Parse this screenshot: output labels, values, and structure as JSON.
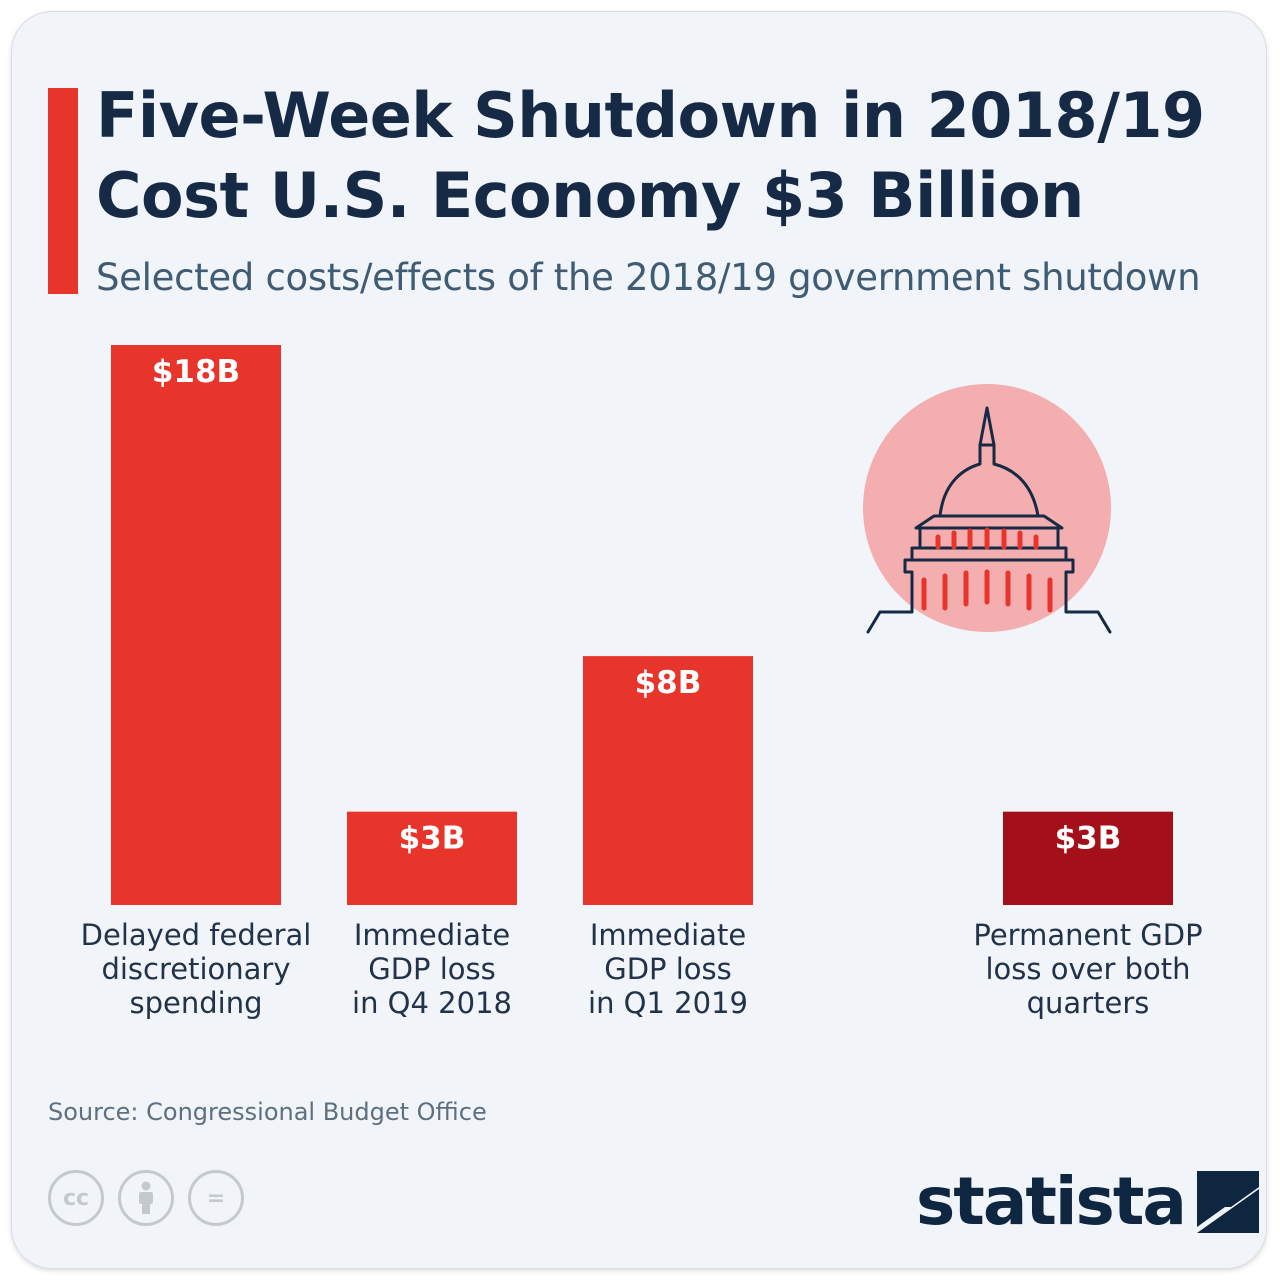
{
  "header": {
    "title_line1": "Five-Week Shutdown in 2018/19",
    "title_line2": "Cost U.S. Economy $3 Billion",
    "subtitle": "Selected costs/effects of the 2018/19 government shutdown"
  },
  "chart_data": {
    "type": "bar",
    "categories": [
      [
        "Delayed federal",
        "discretionary",
        "spending"
      ],
      [
        "Immediate",
        "GDP loss",
        "in Q4 2018"
      ],
      [
        "Immediate",
        "GDP loss",
        "in Q1 2019"
      ],
      [
        "Permanent GDP",
        "loss over both",
        "quarters"
      ]
    ],
    "values": [
      18,
      3,
      8,
      3
    ],
    "value_labels": [
      "$18B",
      "$3B",
      "$8B",
      "$3B"
    ],
    "bar_colors": [
      "#e8352b",
      "#e8352b",
      "#e8352b",
      "#a3101a"
    ],
    "unit": "billion USD",
    "ylim": [
      0,
      18
    ],
    "grid": false,
    "legend": "none"
  },
  "illustration": {
    "icon": "capitol-dome-icon",
    "circle_color": "#f4aeb0",
    "line_color": "#162a45",
    "column_color": "#e8352b"
  },
  "footer": {
    "source": "Source: Congressional Budget Office",
    "license_icons": [
      "cc-icon",
      "attribution-icon",
      "no-derivatives-icon"
    ],
    "license_glyphs": [
      "cc",
      "",
      "="
    ],
    "brand": "statista"
  },
  "colors": {
    "title": "#162a45",
    "accent": "#e8352b",
    "background": "#f1f5f9"
  }
}
